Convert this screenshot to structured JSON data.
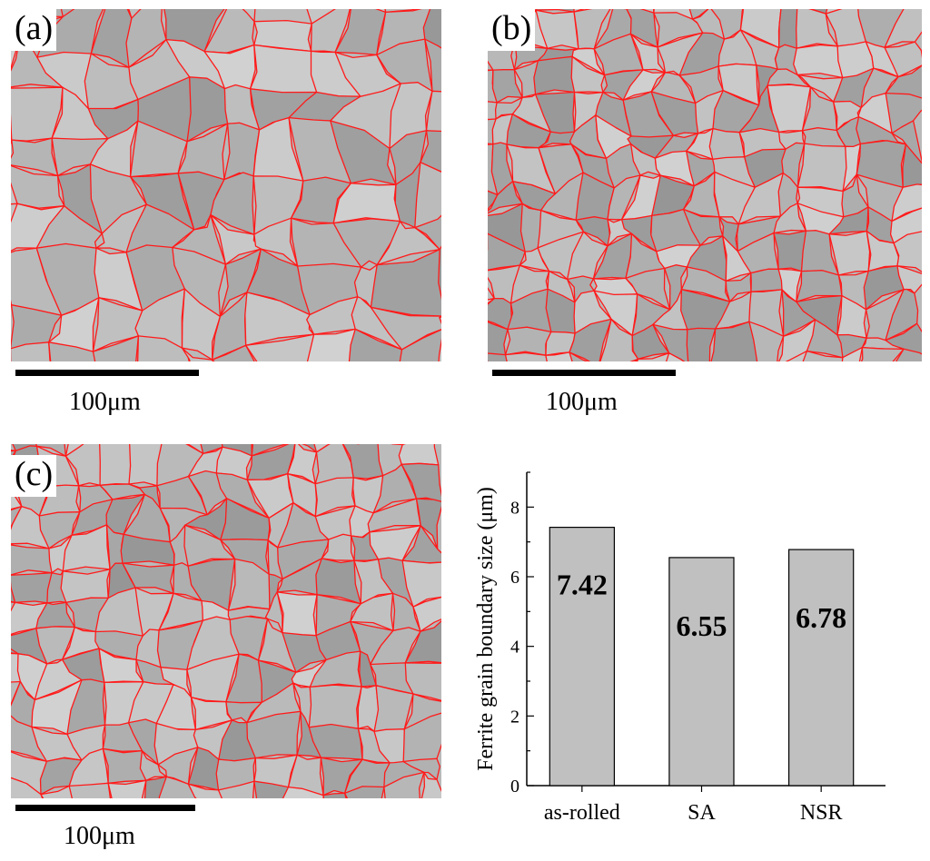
{
  "micrographs": [
    {
      "label": "(a)",
      "scale_label": "100μm"
    },
    {
      "label": "(b)",
      "scale_label": "100μm"
    },
    {
      "label": "(c)",
      "scale_label": "100μm"
    }
  ],
  "colors": {
    "grain_boundary": "#ff1a1a",
    "micrograph_background": "#b9b9b9",
    "bar_fill": "#c0c0c0",
    "bar_stroke": "#000000"
  },
  "chart_data": {
    "type": "bar",
    "categories": [
      "as-rolled",
      "SA",
      "NSR"
    ],
    "values": [
      7.42,
      6.55,
      6.78
    ],
    "data_labels": [
      "7.42",
      "6.55",
      "6.78"
    ],
    "title": "",
    "xlabel": "",
    "ylabel": "Ferrite grain boundary size (μm)",
    "ylim": [
      0,
      9
    ],
    "yticks": [
      0,
      2,
      4,
      6,
      8
    ],
    "grid": false
  }
}
